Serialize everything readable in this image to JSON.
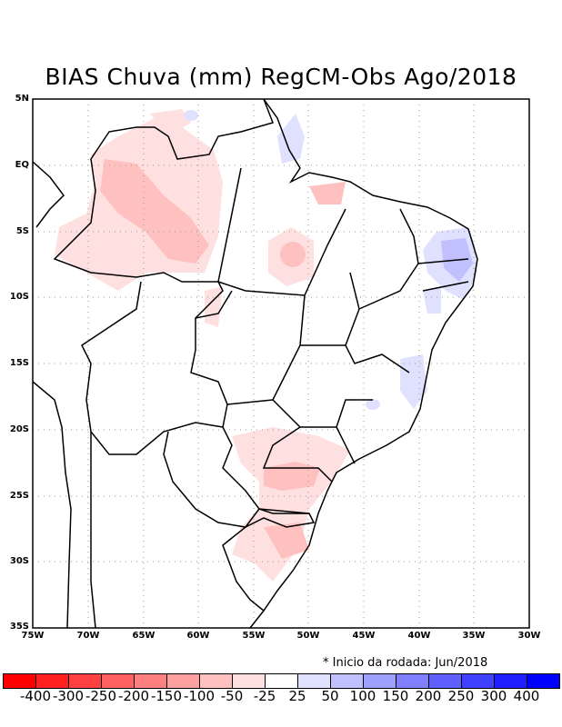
{
  "title": "BIAS Chuva (mm) RegCM-Obs Ago/2018",
  "note": "* Inicio da rodada: Jun/2018",
  "y_labels": [
    "5N",
    "EQ",
    "5S",
    "10S",
    "15S",
    "20S",
    "25S",
    "30S",
    "35S"
  ],
  "x_labels": [
    "75W",
    "70W",
    "65W",
    "60W",
    "55W",
    "50W",
    "45W",
    "40W",
    "35W",
    "30W"
  ],
  "colorbar": {
    "colors": [
      "#ff0000",
      "#ff2020",
      "#ff4040",
      "#ff6060",
      "#ff8080",
      "#ffa0a0",
      "#ffc0c0",
      "#ffe0e0",
      "#ffffff",
      "#e0e0ff",
      "#c0c0ff",
      "#a0a0ff",
      "#8080ff",
      "#6060ff",
      "#4040ff",
      "#2020ff",
      "#0000ff"
    ],
    "labels": [
      "-400",
      "-300",
      "-250",
      "-200",
      "-150",
      "-100",
      "-50",
      "-25",
      "25",
      "50",
      "100",
      "150",
      "200",
      "250",
      "300",
      "400"
    ]
  }
}
